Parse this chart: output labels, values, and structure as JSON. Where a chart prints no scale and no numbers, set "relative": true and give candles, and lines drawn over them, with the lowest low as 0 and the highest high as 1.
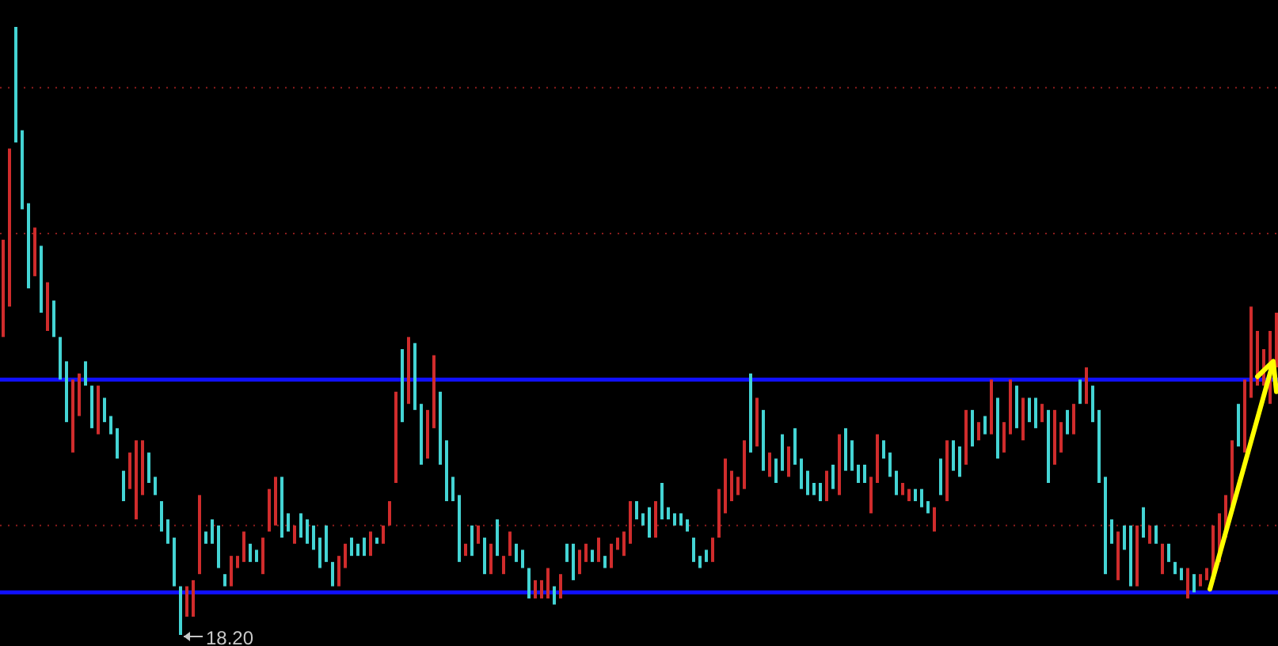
{
  "chart_data": {
    "type": "candlestick",
    "relative": true,
    "colors": [
      "#d02c2c",
      "#d02c2c",
      "#44d4d4",
      "#44d4d4",
      "#44d4d4",
      "#d02c2c",
      "#44d4d4",
      "#d02c2c",
      "#44d4d4",
      "#44d4d4",
      "#44d4d4",
      "#d02c2c",
      "#d02c2c",
      "#44d4d4",
      "#44d4d4",
      "#d02c2c",
      "#44d4d4",
      "#44d4d4",
      "#44d4d4",
      "#44d4d4",
      "#d02c2c",
      "#d02c2c",
      "#d02c2c",
      "#44d4d4",
      "#44d4d4",
      "#44d4d4",
      "#44d4d4",
      "#44d4d4",
      "#44d4d4",
      "#d02c2c",
      "#d02c2c",
      "#d02c2c",
      "#44d4d4",
      "#44d4d4",
      "#44d4d4",
      "#44d4d4",
      "#d02c2c",
      "#d02c2c",
      "#d02c2c",
      "#44d4d4",
      "#44d4d4",
      "#d02c2c",
      "#d02c2c",
      "#d02c2c",
      "#44d4d4",
      "#44d4d4",
      "#d02c2c",
      "#44d4d4",
      "#44d4d4",
      "#44d4d4",
      "#44d4d4",
      "#44d4d4",
      "#44d4d4",
      "#d02c2c",
      "#d02c2c",
      "#44d4d4",
      "#44d4d4",
      "#44d4d4",
      "#d02c2c",
      "#44d4d4",
      "#d02c2c",
      "#d02c2c",
      "#d02c2c",
      "#44d4d4",
      "#d02c2c",
      "#44d4d4",
      "#44d4d4",
      "#d02c2c",
      "#d02c2c",
      "#44d4d4",
      "#44d4d4",
      "#44d4d4",
      "#44d4d4",
      "#d02c2c",
      "#44d4d4",
      "#d02c2c",
      "#44d4d4",
      "#d02c2c",
      "#44d4d4",
      "#d02c2c",
      "#d02c2c",
      "#44d4d4",
      "#44d4d4",
      "#44d4d4",
      "#d02c2c",
      "#d02c2c",
      "#d02c2c",
      "#44d4d4",
      "#d02c2c",
      "#44d4d4",
      "#44d4d4",
      "#d02c2c",
      "#d02c2c",
      "#44d4d4",
      "#d02c2c",
      "#44d4d4",
      "#d02c2c",
      "#d02c2c",
      "#d02c2c",
      "#d02c2c",
      "#44d4d4",
      "#44d4d4",
      "#44d4d4",
      "#d02c2c",
      "#44d4d4",
      "#44d4d4",
      "#44d4d4",
      "#44d4d4",
      "#44d4d4",
      "#44d4d4",
      "#44d4d4",
      "#44d4d4",
      "#d02c2c",
      "#d02c2c",
      "#d02c2c",
      "#d02c2c",
      "#d02c2c",
      "#d02c2c",
      "#44d4d4",
      "#d02c2c",
      "#44d4d4",
      "#d02c2c",
      "#44d4d4",
      "#44d4d4",
      "#d02c2c",
      "#44d4d4",
      "#44d4d4",
      "#44d4d4",
      "#44d4d4",
      "#44d4d4",
      "#d02c2c",
      "#44d4d4",
      "#d02c2c",
      "#44d4d4",
      "#44d4d4",
      "#44d4d4",
      "#44d4d4",
      "#d02c2c",
      "#d02c2c",
      "#44d4d4",
      "#44d4d4",
      "#44d4d4",
      "#d02c2c",
      "#d02c2c",
      "#44d4d4",
      "#44d4d4",
      "#44d4d4",
      "#d02c2c",
      "#44d4d4",
      "#d02c2c",
      "#44d4d4",
      "#44d4d4",
      "#d02c2c",
      "#44d4d4",
      "#d02c2c",
      "#44d4d4",
      "#d02c2c",
      "#44d4d4",
      "#d02c2c",
      "#d02c2c",
      "#44d4d4",
      "#d02c2c",
      "#44d4d4",
      "#44d4d4",
      "#d02c2c",
      "#44d4d4",
      "#d02c2c",
      "#d02c2c",
      "#44d4d4",
      "#d02c2c",
      "#44d4d4",
      "#d02c2c",
      "#44d4d4",
      "#44d4d4",
      "#44d4d4",
      "#44d4d4",
      "#d02c2c",
      "#44d4d4",
      "#44d4d4",
      "#d02c2c",
      "#44d4d4",
      "#d02c2c",
      "#44d4d4",
      "#d02c2c",
      "#44d4d4",
      "#44d4d4",
      "#44d4d4",
      "#d02c2c",
      "#44d4d4",
      "#d02c2c",
      "#d02c2c",
      "#d02c2c",
      "#d02c2c",
      "#d02c2c",
      "#d02c2c",
      "#44d4d4",
      "#d02c2c",
      "#d02c2c",
      "#d02c2c",
      "#d02c2c",
      "#d02c2c",
      "#d02c2c"
    ],
    "categories": [
      null,
      null,
      null,
      null,
      null,
      null,
      null,
      null,
      null,
      null,
      null,
      null,
      null,
      null,
      null,
      null,
      null,
      null,
      null,
      null,
      null,
      null,
      null,
      null,
      null,
      null,
      null,
      null,
      null,
      null,
      null,
      null,
      null,
      null,
      null,
      null,
      null,
      null,
      null,
      null,
      null,
      null,
      null,
      null,
      null,
      null,
      null,
      null,
      null,
      null,
      null,
      null,
      null,
      null,
      null,
      null,
      null,
      null,
      null,
      null,
      null,
      null,
      null,
      null,
      null,
      null,
      null,
      null,
      null,
      null,
      null,
      null,
      null,
      null,
      null,
      null,
      null,
      null,
      null,
      null,
      null,
      null,
      null,
      null,
      null,
      null,
      null,
      null,
      null,
      null,
      null,
      null,
      null,
      null,
      null,
      null,
      null,
      null,
      null,
      null,
      null,
      null,
      null,
      null,
      null,
      null,
      null,
      null,
      null,
      null,
      null,
      null,
      null,
      null,
      null,
      null,
      null,
      null,
      null,
      null,
      null,
      null,
      null,
      null,
      null,
      null,
      null,
      null,
      null,
      null,
      null,
      null,
      null,
      null,
      null,
      null,
      null,
      null,
      null,
      null,
      null,
      null,
      null,
      null,
      null,
      null,
      null,
      null,
      null,
      null,
      null,
      null,
      null,
      null,
      null,
      null,
      null,
      null,
      null,
      null,
      null,
      null,
      null,
      null,
      null,
      null,
      null,
      null,
      null,
      null,
      null,
      null,
      null,
      null,
      null,
      null,
      null,
      null,
      null,
      null,
      null,
      null,
      null,
      null,
      null,
      null,
      null,
      null,
      null,
      null,
      null,
      null,
      null,
      null,
      null,
      null,
      null,
      null,
      null,
      null,
      null,
      null
    ],
    "ohlc": [
      [
        0.49,
        0.65,
        0.49,
        0.65
      ],
      [
        0.54,
        0.8,
        0.54,
        0.8
      ],
      [
        1,
        1,
        0.81,
        0.81
      ],
      [
        0.83,
        0.83,
        0.7,
        0.7
      ],
      [
        0.71,
        0.71,
        0.57,
        0.57
      ],
      [
        0.59,
        0.67,
        0.59,
        0.67
      ],
      [
        0.64,
        0.64,
        0.53,
        0.53
      ],
      [
        0.5,
        0.58,
        0.5,
        0.58
      ],
      [
        0.55,
        0.55,
        0.49,
        0.49
      ],
      [
        0.49,
        0.49,
        0.42,
        0.42
      ],
      [
        0.45,
        0.45,
        0.35,
        0.35
      ],
      [
        0.3,
        0.42,
        0.3,
        0.42
      ],
      [
        0.36,
        0.43,
        0.36,
        0.43
      ],
      [
        0.45,
        0.45,
        0.41,
        0.41
      ],
      [
        0.41,
        0.41,
        0.34,
        0.34
      ],
      [
        0.33,
        0.41,
        0.33,
        0.41
      ],
      [
        0.39,
        0.39,
        0.35,
        0.35
      ],
      [
        0.36,
        0.36,
        0.33,
        0.33
      ],
      [
        0.34,
        0.34,
        0.29,
        0.29
      ],
      [
        0.27,
        0.27,
        0.22,
        0.22
      ],
      [
        0.24,
        0.3,
        0.24,
        0.3
      ],
      [
        0.19,
        0.32,
        0.19,
        0.32
      ],
      [
        0.23,
        0.32,
        0.23,
        0.32
      ],
      [
        0.3,
        0.3,
        0.25,
        0.25
      ],
      [
        0.26,
        0.26,
        0.23,
        0.23
      ],
      [
        0.22,
        0.22,
        0.17,
        0.17
      ],
      [
        0.19,
        0.19,
        0.15,
        0.15
      ],
      [
        0.16,
        0.16,
        0.08,
        0.08
      ],
      [
        0.08,
        0.08,
        0,
        0
      ],
      [
        0.03,
        0.08,
        0.03,
        0.08
      ],
      [
        0.03,
        0.09,
        0.03,
        0.09
      ],
      [
        0.1,
        0.23,
        0.1,
        0.23
      ],
      [
        0.17,
        0.17,
        0.15,
        0.15
      ],
      [
        0.19,
        0.19,
        0.15,
        0.15
      ],
      [
        0.18,
        0.18,
        0.11,
        0.11
      ],
      [
        0.1,
        0.1,
        0.08,
        0.08
      ],
      [
        0.08,
        0.13,
        0.08,
        0.13
      ],
      [
        0.11,
        0.13,
        0.11,
        0.13
      ],
      [
        0.12,
        0.17,
        0.12,
        0.17
      ],
      [
        0.15,
        0.15,
        0.12,
        0.12
      ],
      [
        0.14,
        0.14,
        0.12,
        0.12
      ],
      [
        0.1,
        0.16,
        0.1,
        0.16
      ],
      [
        0.17,
        0.24,
        0.17,
        0.24
      ],
      [
        0.18,
        0.26,
        0.18,
        0.26
      ],
      [
        0.26,
        0.26,
        0.16,
        0.16
      ],
      [
        0.2,
        0.2,
        0.17,
        0.17
      ],
      [
        0.15,
        0.18,
        0.15,
        0.18
      ],
      [
        0.2,
        0.2,
        0.16,
        0.16
      ],
      [
        0.19,
        0.19,
        0.15,
        0.15
      ],
      [
        0.18,
        0.18,
        0.14,
        0.14
      ],
      [
        0.16,
        0.16,
        0.11,
        0.11
      ],
      [
        0.18,
        0.18,
        0.12,
        0.12
      ],
      [
        0.12,
        0.12,
        0.08,
        0.08
      ],
      [
        0.08,
        0.13,
        0.08,
        0.13
      ],
      [
        0.11,
        0.15,
        0.11,
        0.15
      ],
      [
        0.16,
        0.16,
        0.13,
        0.13
      ],
      [
        0.15,
        0.15,
        0.13,
        0.13
      ],
      [
        0.16,
        0.16,
        0.13,
        0.13
      ],
      [
        0.13,
        0.17,
        0.13,
        0.17
      ],
      [
        0.16,
        0.16,
        0.15,
        0.15
      ],
      [
        0.15,
        0.18,
        0.15,
        0.18
      ],
      [
        0.18,
        0.22,
        0.18,
        0.22
      ],
      [
        0.25,
        0.4,
        0.25,
        0.4
      ],
      [
        0.47,
        0.47,
        0.35,
        0.35
      ],
      [
        0.38,
        0.49,
        0.38,
        0.49
      ],
      [
        0.48,
        0.48,
        0.37,
        0.37
      ],
      [
        0.38,
        0.38,
        0.28,
        0.28
      ],
      [
        0.29,
        0.37,
        0.29,
        0.37
      ],
      [
        0.34,
        0.46,
        0.34,
        0.46
      ],
      [
        0.4,
        0.4,
        0.28,
        0.28
      ],
      [
        0.32,
        0.32,
        0.22,
        0.22
      ],
      [
        0.26,
        0.26,
        0.22,
        0.22
      ],
      [
        0.23,
        0.23,
        0.12,
        0.12
      ],
      [
        0.13,
        0.15,
        0.13,
        0.15
      ],
      [
        0.18,
        0.18,
        0.13,
        0.13
      ],
      [
        0.15,
        0.18,
        0.15,
        0.18
      ],
      [
        0.16,
        0.16,
        0.1,
        0.1
      ],
      [
        0.1,
        0.15,
        0.1,
        0.15
      ],
      [
        0.19,
        0.19,
        0.13,
        0.13
      ],
      [
        0.1,
        0.13,
        0.1,
        0.13
      ],
      [
        0.13,
        0.17,
        0.13,
        0.17
      ],
      [
        0.15,
        0.15,
        0.12,
        0.12
      ],
      [
        0.14,
        0.14,
        0.11,
        0.11
      ],
      [
        0.11,
        0.11,
        0.06,
        0.06
      ],
      [
        0.06,
        0.09,
        0.06,
        0.09
      ],
      [
        0.06,
        0.09,
        0.06,
        0.09
      ],
      [
        0.06,
        0.11,
        0.06,
        0.11
      ],
      [
        0.08,
        0.08,
        0.05,
        0.05
      ],
      [
        0.06,
        0.1,
        0.06,
        0.1
      ],
      [
        0.15,
        0.15,
        0.12,
        0.12
      ],
      [
        0.15,
        0.15,
        0.09,
        0.09
      ],
      [
        0.1,
        0.14,
        0.1,
        0.14
      ],
      [
        0.12,
        0.15,
        0.12,
        0.15
      ],
      [
        0.14,
        0.14,
        0.12,
        0.12
      ],
      [
        0.12,
        0.16,
        0.12,
        0.16
      ],
      [
        0.13,
        0.13,
        0.11,
        0.11
      ],
      [
        0.11,
        0.15,
        0.11,
        0.15
      ],
      [
        0.14,
        0.16,
        0.14,
        0.16
      ],
      [
        0.13,
        0.17,
        0.13,
        0.17
      ],
      [
        0.15,
        0.22,
        0.15,
        0.22
      ],
      [
        0.22,
        0.22,
        0.19,
        0.19
      ],
      [
        0.2,
        0.2,
        0.18,
        0.18
      ],
      [
        0.21,
        0.21,
        0.16,
        0.16
      ],
      [
        0.16,
        0.22,
        0.16,
        0.22
      ],
      [
        0.25,
        0.25,
        0.19,
        0.19
      ],
      [
        0.21,
        0.21,
        0.19,
        0.19
      ],
      [
        0.2,
        0.2,
        0.18,
        0.18
      ],
      [
        0.2,
        0.2,
        0.18,
        0.18
      ],
      [
        0.19,
        0.19,
        0.17,
        0.17
      ],
      [
        0.16,
        0.16,
        0.12,
        0.12
      ],
      [
        0.13,
        0.13,
        0.11,
        0.11
      ],
      [
        0.14,
        0.14,
        0.12,
        0.12
      ],
      [
        0.12,
        0.16,
        0.12,
        0.16
      ],
      [
        0.16,
        0.24,
        0.16,
        0.24
      ],
      [
        0.2,
        0.29,
        0.2,
        0.29
      ],
      [
        0.22,
        0.27,
        0.22,
        0.27
      ],
      [
        0.23,
        0.26,
        0.23,
        0.26
      ],
      [
        0.24,
        0.32,
        0.24,
        0.32
      ],
      [
        0.43,
        0.43,
        0.3,
        0.3
      ],
      [
        0.31,
        0.39,
        0.31,
        0.39
      ],
      [
        0.37,
        0.37,
        0.27,
        0.27
      ],
      [
        0.26,
        0.3,
        0.26,
        0.3
      ],
      [
        0.29,
        0.29,
        0.25,
        0.25
      ],
      [
        0.33,
        0.33,
        0.27,
        0.27
      ],
      [
        0.26,
        0.31,
        0.26,
        0.31
      ],
      [
        0.34,
        0.34,
        0.28,
        0.28
      ],
      [
        0.29,
        0.29,
        0.24,
        0.24
      ],
      [
        0.27,
        0.27,
        0.23,
        0.23
      ],
      [
        0.25,
        0.25,
        0.23,
        0.23
      ],
      [
        0.25,
        0.25,
        0.22,
        0.22
      ],
      [
        0.22,
        0.27,
        0.22,
        0.27
      ],
      [
        0.28,
        0.28,
        0.24,
        0.24
      ],
      [
        0.23,
        0.33,
        0.23,
        0.33
      ],
      [
        0.34,
        0.34,
        0.27,
        0.27
      ],
      [
        0.32,
        0.32,
        0.27,
        0.27
      ],
      [
        0.28,
        0.28,
        0.25,
        0.25
      ],
      [
        0.28,
        0.28,
        0.25,
        0.25
      ],
      [
        0.2,
        0.26,
        0.2,
        0.26
      ],
      [
        0.25,
        0.33,
        0.25,
        0.33
      ],
      [
        0.32,
        0.32,
        0.29,
        0.29
      ],
      [
        0.3,
        0.3,
        0.26,
        0.26
      ],
      [
        0.27,
        0.27,
        0.23,
        0.23
      ],
      [
        0.23,
        0.25,
        0.23,
        0.25
      ],
      [
        0.22,
        0.24,
        0.22,
        0.24
      ],
      [
        0.24,
        0.24,
        0.22,
        0.22
      ],
      [
        0.24,
        0.24,
        0.21,
        0.21
      ],
      [
        0.22,
        0.22,
        0.2,
        0.2
      ],
      [
        0.17,
        0.21,
        0.17,
        0.21
      ],
      [
        0.29,
        0.29,
        0.23,
        0.23
      ],
      [
        0.22,
        0.32,
        0.22,
        0.32
      ],
      [
        0.32,
        0.32,
        0.27,
        0.27
      ],
      [
        0.31,
        0.31,
        0.26,
        0.26
      ],
      [
        0.28,
        0.37,
        0.28,
        0.37
      ],
      [
        0.37,
        0.37,
        0.31,
        0.31
      ],
      [
        0.32,
        0.35,
        0.32,
        0.35
      ],
      [
        0.36,
        0.36,
        0.33,
        0.33
      ],
      [
        0.33,
        0.42,
        0.33,
        0.42
      ],
      [
        0.39,
        0.39,
        0.29,
        0.29
      ],
      [
        0.3,
        0.35,
        0.3,
        0.35
      ],
      [
        0.33,
        0.42,
        0.33,
        0.42
      ],
      [
        0.41,
        0.41,
        0.34,
        0.34
      ],
      [
        0.32,
        0.39,
        0.32,
        0.39
      ],
      [
        0.39,
        0.39,
        0.35,
        0.35
      ],
      [
        0.39,
        0.39,
        0.34,
        0.34
      ],
      [
        0.35,
        0.38,
        0.35,
        0.38
      ],
      [
        0.37,
        0.37,
        0.25,
        0.25
      ],
      [
        0.28,
        0.37,
        0.28,
        0.37
      ],
      [
        0.3,
        0.35,
        0.3,
        0.35
      ],
      [
        0.37,
        0.37,
        0.33,
        0.33
      ],
      [
        0.33,
        0.38,
        0.33,
        0.38
      ],
      [
        0.42,
        0.42,
        0.38,
        0.38
      ],
      [
        0.38,
        0.44,
        0.38,
        0.44
      ],
      [
        0.41,
        0.41,
        0.35,
        0.35
      ],
      [
        0.37,
        0.37,
        0.25,
        0.25
      ],
      [
        0.26,
        0.26,
        0.1,
        0.1
      ],
      [
        0.19,
        0.19,
        0.15,
        0.15
      ],
      [
        0.09,
        0.17,
        0.09,
        0.17
      ],
      [
        0.18,
        0.18,
        0.14,
        0.14
      ],
      [
        0.18,
        0.18,
        0.08,
        0.08
      ],
      [
        0.08,
        0.18,
        0.08,
        0.18
      ],
      [
        0.21,
        0.21,
        0.16,
        0.16
      ],
      [
        0.15,
        0.18,
        0.15,
        0.18
      ],
      [
        0.18,
        0.18,
        0.15,
        0.15
      ],
      [
        0.1,
        0.15,
        0.1,
        0.15
      ],
      [
        0.15,
        0.15,
        0.12,
        0.12
      ],
      [
        0.12,
        0.12,
        0.1,
        0.1
      ],
      [
        0.11,
        0.11,
        0.09,
        0.09
      ],
      [
        0.06,
        0.11,
        0.06,
        0.11
      ],
      [
        0.1,
        0.1,
        0.07,
        0.07
      ],
      [
        0.08,
        0.1,
        0.08,
        0.1
      ],
      [
        0.09,
        0.11,
        0.09,
        0.11
      ],
      [
        0.09,
        0.18,
        0.09,
        0.18
      ],
      [
        0.12,
        0.2,
        0.12,
        0.2
      ],
      [
        0.16,
        0.23,
        0.16,
        0.23
      ],
      [
        0.21,
        0.32,
        0.21,
        0.32
      ],
      [
        0.38,
        0.38,
        0.31,
        0.31
      ],
      [
        0.3,
        0.42,
        0.3,
        0.42
      ],
      [
        0.39,
        0.54,
        0.39,
        0.54
      ],
      [
        0.41,
        0.5,
        0.41,
        0.5
      ],
      [
        0.41,
        0.47,
        0.41,
        0.47
      ],
      [
        0.38,
        0.5,
        0.38,
        0.5
      ],
      [
        0.44,
        0.53,
        0.44,
        0.53
      ]
    ],
    "ref_lines": [
      {
        "axis": "y",
        "value": 0.9,
        "color": "#8a1c1c",
        "line_style": "dotted"
      },
      {
        "axis": "y",
        "value": 0.66,
        "color": "#8a1c1c",
        "line_style": "dotted"
      },
      {
        "axis": "y",
        "value": 0.18,
        "color": "#8a1c1c",
        "line_style": "dotted"
      },
      {
        "axis": "y",
        "value": 0.42,
        "color": "#1010ff",
        "line_style": "solid"
      },
      {
        "axis": "y",
        "value": 0.07,
        "color": "#1010ff",
        "line_style": "solid"
      }
    ],
    "annotations": [
      "18.20"
    ]
  }
}
